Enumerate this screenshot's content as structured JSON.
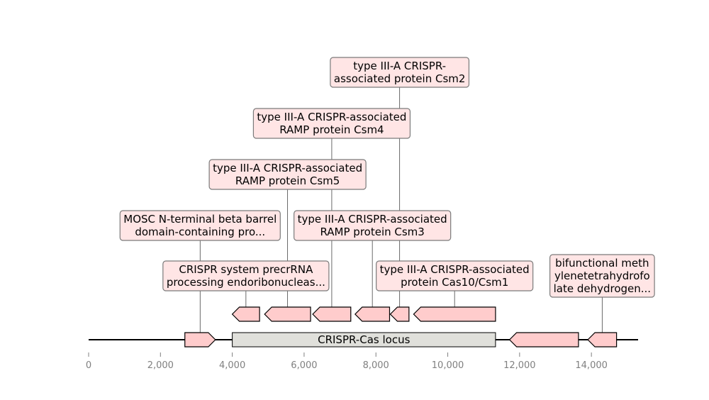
{
  "colors": {
    "gene_fill": "#ffcccc",
    "label_fill": "#ffe5e5",
    "label_border": "#7a7a7a",
    "region_fill": "#e0e0db",
    "axis_text": "#808080",
    "stroke": "#000000"
  },
  "axis": {
    "min": 0,
    "max": 15300,
    "ticks": [
      0,
      2000,
      4000,
      6000,
      8000,
      10000,
      12000,
      14000
    ],
    "tick_labels": [
      "0",
      "2,000",
      "4,000",
      "6,000",
      "8,000",
      "10,000",
      "12,000",
      "14,000"
    ]
  },
  "region": {
    "label": "CRISPR-Cas locus",
    "start": 4000,
    "end": 11330
  },
  "features": [
    {
      "id": "mosc",
      "start": 2680,
      "end": 3530,
      "strand": 1,
      "level": 0,
      "label": [
        "MOSC N-terminal beta barrel",
        "domain-containing pro..."
      ],
      "label_level": 3
    },
    {
      "id": "cas6",
      "start": 4000,
      "end": 4760,
      "strand": -1,
      "level": 1,
      "label": [
        "CRISPR system precrRNA",
        "processing endoribonucleas..."
      ],
      "label_level": 1
    },
    {
      "id": "csm5",
      "start": 4900,
      "end": 6180,
      "strand": -1,
      "level": 1,
      "label": [
        "type III-A CRISPR-associated",
        "RAMP protein Csm5"
      ],
      "label_level": 4
    },
    {
      "id": "csm4",
      "start": 6240,
      "end": 7300,
      "strand": -1,
      "level": 1,
      "label": [
        "type III-A CRISPR-associated",
        "RAMP protein Csm4"
      ],
      "label_level": 5
    },
    {
      "id": "csm3",
      "start": 7420,
      "end": 8380,
      "strand": -1,
      "level": 1,
      "label": [
        "type III-A CRISPR-associated",
        "RAMP protein Csm3"
      ],
      "label_level": 3
    },
    {
      "id": "csm2",
      "start": 8400,
      "end": 8920,
      "strand": -1,
      "level": 1,
      "label": [
        "type III-A CRISPR-",
        "associated protein Csm2"
      ],
      "label_level": 6
    },
    {
      "id": "cas10",
      "start": 9050,
      "end": 11330,
      "strand": -1,
      "level": 1,
      "label": [
        "type III-A CRISPR-associated",
        "protein Cas10/Csm1"
      ],
      "label_level": 1
    },
    {
      "id": "folD",
      "start": 11720,
      "end": 13640,
      "strand": -1,
      "level": 0,
      "label": null,
      "label_level": null
    },
    {
      "id": "mthfd",
      "start": 13900,
      "end": 14700,
      "strand": -1,
      "level": 0,
      "label": [
        "bifunctional meth",
        "ylenetetrahydrofo",
        "late dehydrogen..."
      ],
      "label_level": 1
    }
  ]
}
